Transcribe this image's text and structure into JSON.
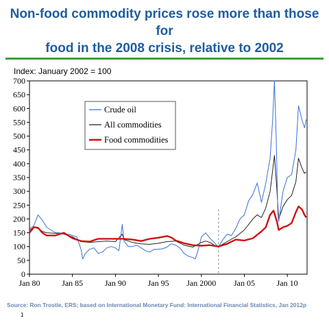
{
  "slide": {
    "title_line1": "Non-food commodity prices rose more than those for",
    "title_line2": "food in the 2008 crisis, relative to 2002",
    "index_label": "Index:  January 2002 = 100",
    "source": "Source:  Ron Trostle, ERS; based on International Monetary Fund:  International Financial Statistics, Jan 2012p",
    "page_number": "1"
  },
  "colors": {
    "title": "#1f5d9e",
    "rule": "#3e9e3a",
    "crude_oil": "#3a6fd8",
    "all_commodities": "#222222",
    "food_commodities": "#d01010"
  },
  "chart_data": {
    "type": "line",
    "ylim": [
      0,
      700
    ],
    "yticks": [
      0,
      50,
      100,
      150,
      200,
      250,
      300,
      350,
      400,
      450,
      500,
      550,
      600,
      650,
      700
    ],
    "xlim": [
      1980,
      2012.3
    ],
    "xticks": [
      {
        "x": 1980,
        "label": "Jan 80"
      },
      {
        "x": 1985,
        "label": "Jan 85"
      },
      {
        "x": 1990,
        "label": "Jan 90"
      },
      {
        "x": 1995,
        "label": "Jan 95"
      },
      {
        "x": 2000,
        "label": "Jan 2000"
      },
      {
        "x": 2005,
        "label": "Jan 05"
      },
      {
        "x": 2010,
        "label": "Jan 10"
      }
    ],
    "reference_line_x": 2002,
    "legend_position": "top-left",
    "series": [
      {
        "name": "Crude oil",
        "color": "#3a6fd8",
        "points": [
          [
            1980,
            165
          ],
          [
            1980.5,
            175
          ],
          [
            1981,
            215
          ],
          [
            1981.5,
            195
          ],
          [
            1982,
            170
          ],
          [
            1982.5,
            160
          ],
          [
            1983,
            150
          ],
          [
            1983.5,
            150
          ],
          [
            1984,
            145
          ],
          [
            1984.5,
            145
          ],
          [
            1985,
            140
          ],
          [
            1985.5,
            135
          ],
          [
            1986,
            90
          ],
          [
            1986.2,
            55
          ],
          [
            1986.5,
            75
          ],
          [
            1987,
            90
          ],
          [
            1987.5,
            95
          ],
          [
            1988,
            75
          ],
          [
            1988.5,
            80
          ],
          [
            1989,
            95
          ],
          [
            1989.5,
            100
          ],
          [
            1990,
            95
          ],
          [
            1990.4,
            85
          ],
          [
            1990.8,
            180
          ],
          [
            1991,
            120
          ],
          [
            1991.5,
            100
          ],
          [
            1992,
            100
          ],
          [
            1992.5,
            105
          ],
          [
            1993,
            95
          ],
          [
            1993.5,
            85
          ],
          [
            1994,
            80
          ],
          [
            1994.5,
            90
          ],
          [
            1995,
            90
          ],
          [
            1995.5,
            92
          ],
          [
            1996,
            98
          ],
          [
            1996.5,
            110
          ],
          [
            1997,
            105
          ],
          [
            1997.5,
            95
          ],
          [
            1998,
            75
          ],
          [
            1998.5,
            65
          ],
          [
            1999,
            60
          ],
          [
            1999.3,
            55
          ],
          [
            1999.7,
            95
          ],
          [
            2000,
            135
          ],
          [
            2000.5,
            150
          ],
          [
            2001,
            130
          ],
          [
            2001.5,
            115
          ],
          [
            2001.9,
            100
          ],
          [
            2002,
            100
          ],
          [
            2002.5,
            125
          ],
          [
            2003,
            145
          ],
          [
            2003.5,
            140
          ],
          [
            2004,
            165
          ],
          [
            2004.5,
            200
          ],
          [
            2005,
            215
          ],
          [
            2005.5,
            265
          ],
          [
            2006,
            290
          ],
          [
            2006.5,
            330
          ],
          [
            2007,
            260
          ],
          [
            2007.5,
            330
          ],
          [
            2008,
            420
          ],
          [
            2008.3,
            560
          ],
          [
            2008.5,
            700
          ],
          [
            2008.7,
            500
          ],
          [
            2008.9,
            220
          ],
          [
            2009,
            190
          ],
          [
            2009.5,
            300
          ],
          [
            2010,
            350
          ],
          [
            2010.5,
            360
          ],
          [
            2011,
            450
          ],
          [
            2011.3,
            610
          ],
          [
            2011.7,
            560
          ],
          [
            2012,
            530
          ],
          [
            2012.2,
            560
          ]
        ]
      },
      {
        "name": "All commodities",
        "color": "#222222",
        "points": [
          [
            1980,
            160
          ],
          [
            1980.5,
            170
          ],
          [
            1981,
            165
          ],
          [
            1981.5,
            155
          ],
          [
            1982,
            150
          ],
          [
            1983,
            148
          ],
          [
            1984,
            145
          ],
          [
            1985,
            135
          ],
          [
            1986,
            118
          ],
          [
            1987,
            115
          ],
          [
            1988,
            118
          ],
          [
            1989,
            120
          ],
          [
            1990,
            118
          ],
          [
            1990.8,
            145
          ],
          [
            1991,
            125
          ],
          [
            1992,
            115
          ],
          [
            1993,
            110
          ],
          [
            1994,
            108
          ],
          [
            1995,
            112
          ],
          [
            1996,
            118
          ],
          [
            1997,
            120
          ],
          [
            1998,
            105
          ],
          [
            1999,
            98
          ],
          [
            2000,
            115
          ],
          [
            2000.5,
            120
          ],
          [
            2001,
            115
          ],
          [
            2001.5,
            105
          ],
          [
            2002,
            100
          ],
          [
            2003,
            118
          ],
          [
            2004,
            135
          ],
          [
            2005,
            160
          ],
          [
            2006,
            200
          ],
          [
            2006.5,
            215
          ],
          [
            2007,
            205
          ],
          [
            2007.5,
            240
          ],
          [
            2008,
            300
          ],
          [
            2008.5,
            430
          ],
          [
            2008.8,
            300
          ],
          [
            2009,
            200
          ],
          [
            2009.5,
            245
          ],
          [
            2010,
            270
          ],
          [
            2010.5,
            285
          ],
          [
            2011,
            335
          ],
          [
            2011.3,
            420
          ],
          [
            2011.7,
            385
          ],
          [
            2012,
            365
          ],
          [
            2012.2,
            370
          ]
        ]
      },
      {
        "name": "Food commodities",
        "color": "#d01010",
        "points": [
          [
            1980,
            150
          ],
          [
            1980.5,
            170
          ],
          [
            1981,
            168
          ],
          [
            1981.5,
            150
          ],
          [
            1982,
            140
          ],
          [
            1983,
            140
          ],
          [
            1984,
            150
          ],
          [
            1985,
            130
          ],
          [
            1986,
            120
          ],
          [
            1987,
            118
          ],
          [
            1988,
            128
          ],
          [
            1989,
            128
          ],
          [
            1990,
            128
          ],
          [
            1991,
            128
          ],
          [
            1992,
            125
          ],
          [
            1993,
            120
          ],
          [
            1994,
            128
          ],
          [
            1995,
            132
          ],
          [
            1996,
            138
          ],
          [
            1996.5,
            133
          ],
          [
            1997,
            122
          ],
          [
            1998,
            112
          ],
          [
            1999,
            105
          ],
          [
            2000,
            103
          ],
          [
            2001,
            105
          ],
          [
            2002,
            100
          ],
          [
            2003,
            110
          ],
          [
            2004,
            125
          ],
          [
            2005,
            122
          ],
          [
            2006,
            130
          ],
          [
            2007,
            155
          ],
          [
            2007.5,
            170
          ],
          [
            2008,
            215
          ],
          [
            2008.4,
            230
          ],
          [
            2008.8,
            190
          ],
          [
            2009,
            160
          ],
          [
            2009.5,
            170
          ],
          [
            2010,
            175
          ],
          [
            2010.5,
            185
          ],
          [
            2011,
            225
          ],
          [
            2011.3,
            245
          ],
          [
            2011.7,
            235
          ],
          [
            2012,
            215
          ],
          [
            2012.2,
            205
          ]
        ]
      }
    ]
  }
}
